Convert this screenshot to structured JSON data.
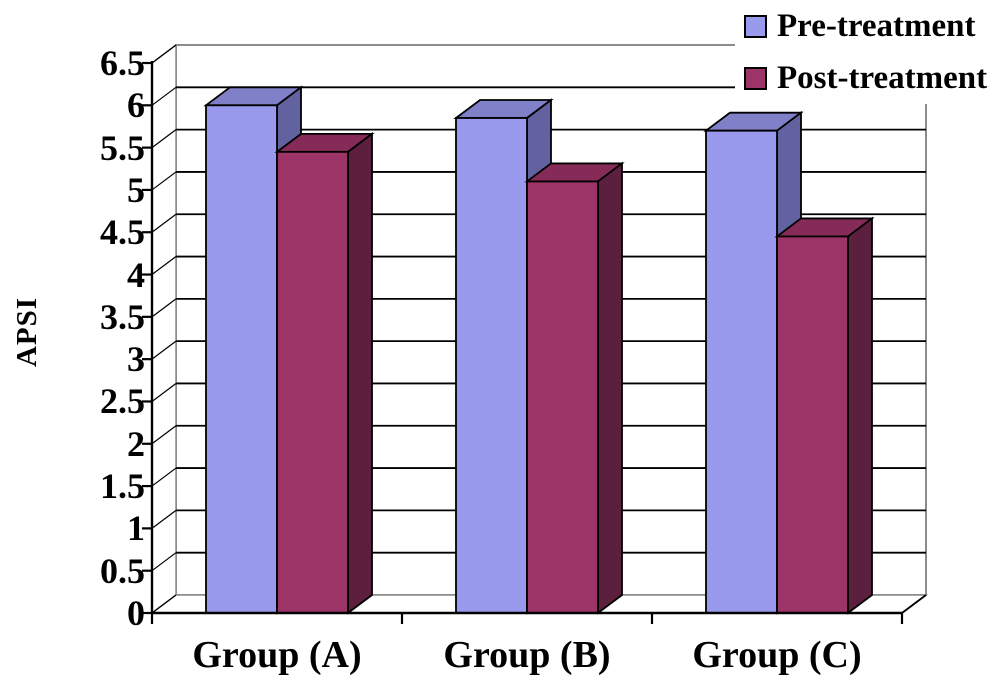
{
  "chart_data": {
    "type": "bar",
    "style": "3d-clustered-column",
    "title": "",
    "xlabel": "",
    "ylabel": "APSI",
    "categories": [
      "Group (A)",
      "Group (B)",
      "Group (C)"
    ],
    "series": [
      {
        "name": "Pre-treatment",
        "values": [
          6.0,
          5.85,
          5.7
        ],
        "color": "#9999EE",
        "color_top": "#8080C8",
        "color_side": "#6262A0"
      },
      {
        "name": "Post-treatment",
        "values": [
          5.45,
          5.1,
          4.45
        ],
        "color": "#9C3468",
        "color_top": "#862B57",
        "color_side": "#5C1F3E"
      }
    ],
    "ylim": [
      0,
      6.5
    ],
    "ytick_step": 0.5,
    "ytick_labels": [
      "0",
      "0.5",
      "1",
      "1.5",
      "2",
      "2.5",
      "3",
      "3.5",
      "4",
      "4.5",
      "5",
      "5.5",
      "6",
      "6.5"
    ],
    "grid": true,
    "legend_position": "top-right",
    "colors": {
      "grid": "#000000",
      "wall_border": "#8c8c8c",
      "background": "#ffffff"
    }
  }
}
